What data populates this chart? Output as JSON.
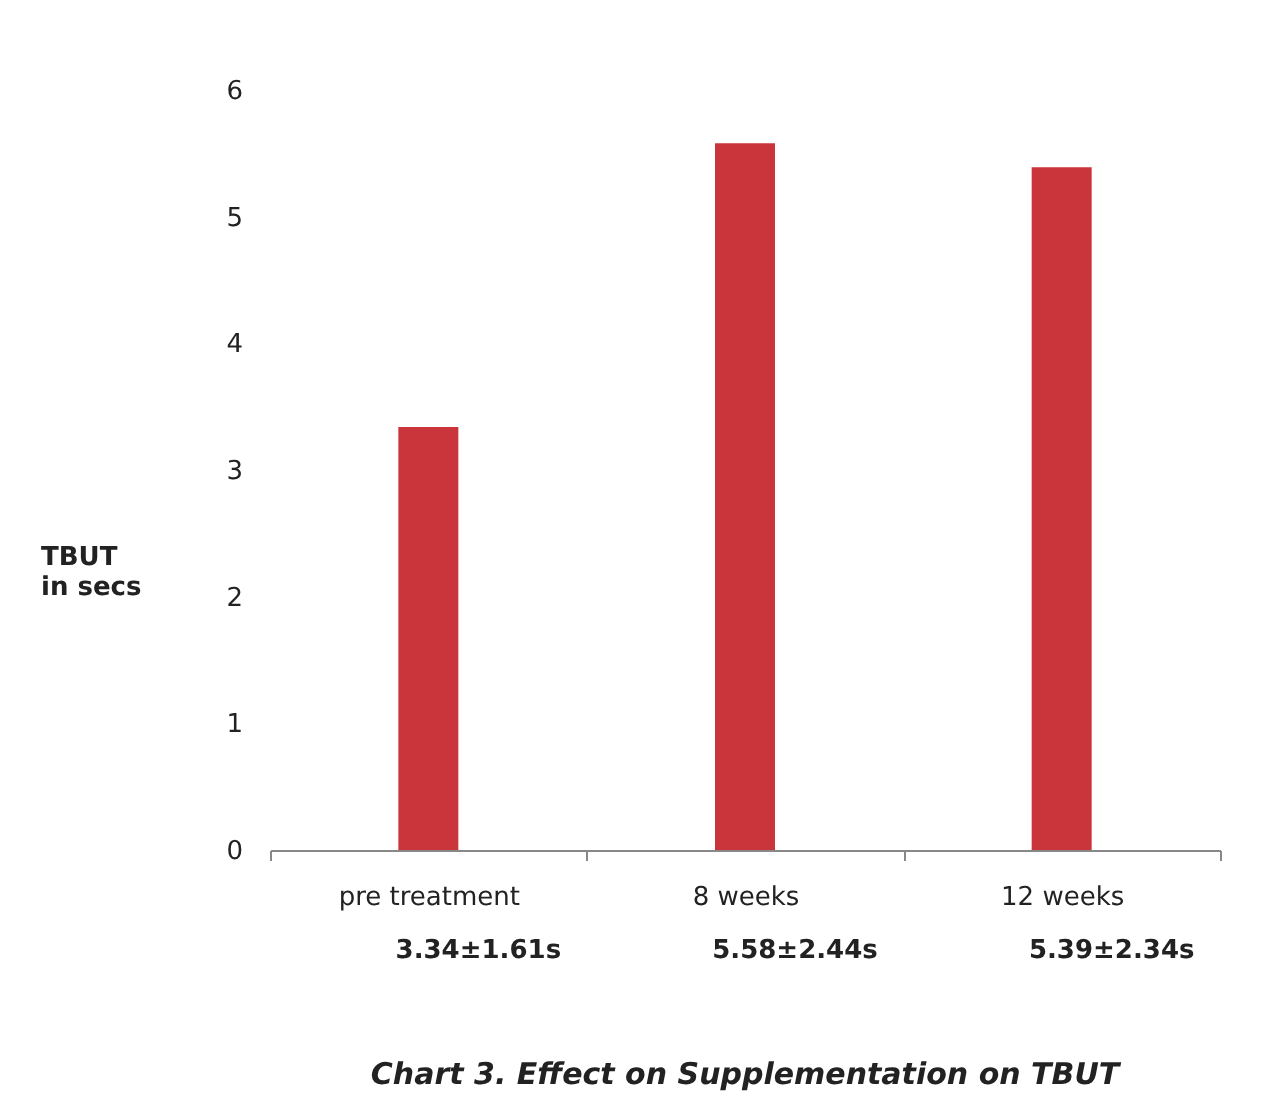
{
  "chart_data": {
    "type": "bar",
    "title": "Chart 3. Effect on Supplementation on TBUT",
    "ylabel": "TBUT\nin secs",
    "categories": [
      "pre treatment",
      "8  weeks",
      "12 weeks"
    ],
    "values": [
      3.34,
      5.58,
      5.39
    ],
    "color": "#c9353a",
    "value_labels": [
      "3.34±1.61s",
      "5.58±2.44s",
      "5.39±2.34s"
    ],
    "ylim": [
      0,
      6
    ],
    "yticks": [
      0,
      1,
      2,
      3,
      4,
      5,
      6
    ],
    "grid": false
  }
}
